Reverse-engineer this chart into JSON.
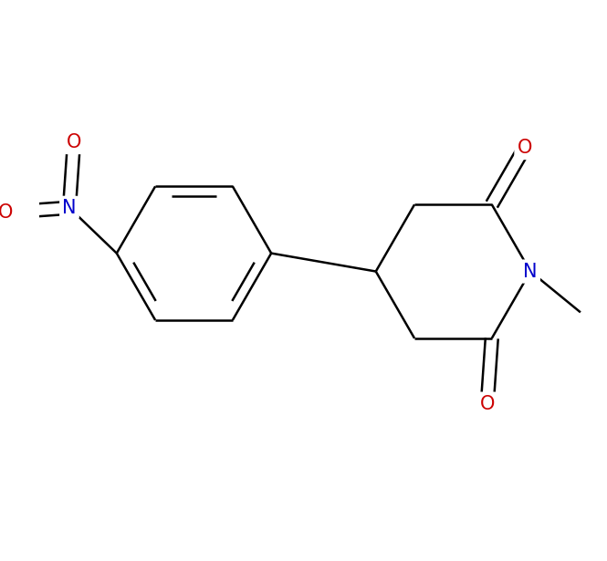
{
  "background_color": "#ffffff",
  "bond_color": "#000000",
  "bond_width": 1.8,
  "atom_colors": {
    "C": "#000000",
    "N": "#0000cc",
    "O": "#cc0000"
  },
  "font_size": 15,
  "figsize": [
    6.65,
    6.15
  ],
  "dpi": 100,
  "xlim": [
    -3.0,
    3.2
  ],
  "ylim": [
    -2.2,
    2.2
  ]
}
